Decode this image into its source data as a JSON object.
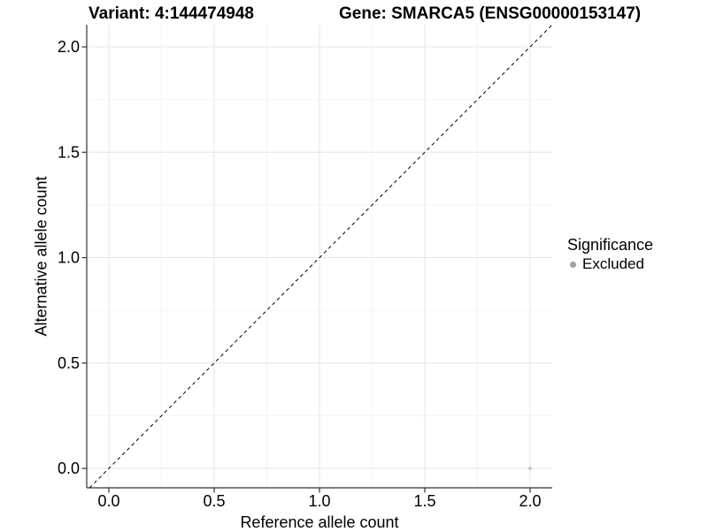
{
  "chart_data": {
    "type": "scatter",
    "title_left": "Variant: 4:144474948",
    "title_right": "Gene: SMARCA5 (ENSG00000153147)",
    "xlabel": "Reference allele count",
    "ylabel": "Alternative allele count",
    "xlim": [
      -0.105,
      2.105
    ],
    "ylim": [
      -0.092,
      2.105
    ],
    "xticks": [
      {
        "v": 0.0,
        "label": "0.0"
      },
      {
        "v": 0.5,
        "label": "0.5"
      },
      {
        "v": 1.0,
        "label": "1.0"
      },
      {
        "v": 1.5,
        "label": "1.5"
      },
      {
        "v": 2.0,
        "label": "2.0"
      }
    ],
    "yticks": [
      {
        "v": 0.0,
        "label": "0.0"
      },
      {
        "v": 0.5,
        "label": "0.5"
      },
      {
        "v": 1.0,
        "label": "1.0"
      },
      {
        "v": 1.5,
        "label": "1.5"
      },
      {
        "v": 2.0,
        "label": "2.0"
      }
    ],
    "x_minor": [
      0.25,
      0.75,
      1.25,
      1.75
    ],
    "y_minor": [
      0.25,
      0.75,
      1.25,
      1.75
    ],
    "grid": "major+minor",
    "legend_position": "right",
    "identity_line": {
      "slope": 1,
      "intercept": 0,
      "style": "dashed",
      "color": "#000000"
    },
    "series": [
      {
        "name": "Excluded",
        "color": "#bdbdbd",
        "point_radius": 1.8,
        "points": [
          [
            2.0,
            0.0
          ]
        ]
      }
    ],
    "legend": {
      "title": "Significance",
      "items": [
        {
          "label": "Excluded",
          "color": "#a0a0a0"
        }
      ]
    },
    "colors": {
      "background": "#ffffff",
      "grid_major": "#e6e6e6",
      "grid_minor": "#f2f2f2",
      "axis": "#333333",
      "text": "#000000"
    }
  }
}
